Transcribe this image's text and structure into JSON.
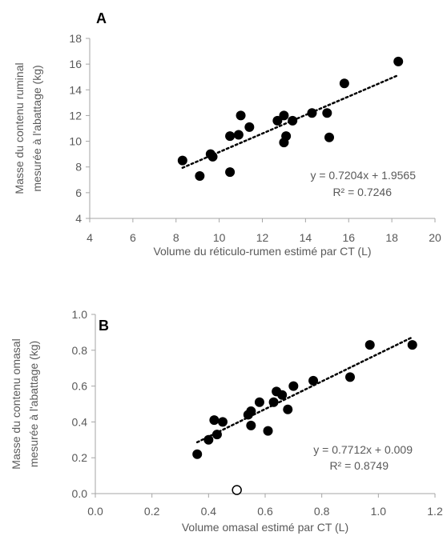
{
  "chart_data": [
    {
      "type": "scatter",
      "panel_label": "A",
      "ylabel_lines": [
        "Masse du contenu ruminal",
        "mesurée à l'abattage (kg)"
      ],
      "xlabel": "Volume du réticulo-rumen estimé par CT (L)",
      "xlim": [
        4,
        20
      ],
      "ylim": [
        4,
        18
      ],
      "xticks": [
        4,
        6,
        8,
        10,
        12,
        14,
        16,
        18,
        20
      ],
      "yticks": [
        4,
        6,
        8,
        10,
        12,
        14,
        16,
        18
      ],
      "tick_decimals": 0,
      "grid": false,
      "trendline": {
        "slope": 0.7204,
        "intercept": 1.9565,
        "x_range": [
          8.3,
          18.3
        ],
        "style": "dotted"
      },
      "annotation": {
        "equation": "y = 0.7204x + 1.9565",
        "r2": "R² = 0.7246"
      },
      "points": [
        {
          "x": 8.3,
          "y": 8.5
        },
        {
          "x": 9.1,
          "y": 7.3
        },
        {
          "x": 9.6,
          "y": 9.0
        },
        {
          "x": 9.7,
          "y": 8.8
        },
        {
          "x": 10.5,
          "y": 7.6
        },
        {
          "x": 10.5,
          "y": 10.4
        },
        {
          "x": 10.9,
          "y": 10.5
        },
        {
          "x": 11.0,
          "y": 12.0
        },
        {
          "x": 11.4,
          "y": 11.1
        },
        {
          "x": 12.7,
          "y": 11.6
        },
        {
          "x": 13.0,
          "y": 12.0
        },
        {
          "x": 13.0,
          "y": 9.9
        },
        {
          "x": 13.1,
          "y": 10.4
        },
        {
          "x": 13.4,
          "y": 11.6
        },
        {
          "x": 14.3,
          "y": 12.2
        },
        {
          "x": 15.0,
          "y": 12.2
        },
        {
          "x": 15.1,
          "y": 10.3
        },
        {
          "x": 15.8,
          "y": 14.5
        },
        {
          "x": 18.3,
          "y": 16.2
        }
      ],
      "outliers": []
    },
    {
      "type": "scatter",
      "panel_label": "B",
      "ylabel_lines": [
        "Masse du contenu omasal",
        "mesurée à l'abattage (kg)"
      ],
      "xlabel": "Volume omasal estimé par CT (L)",
      "xlim": [
        0.0,
        1.2
      ],
      "ylim": [
        0.0,
        1.0
      ],
      "xticks": [
        0.0,
        0.2,
        0.4,
        0.6,
        0.8,
        1.0,
        1.2
      ],
      "yticks": [
        0.0,
        0.2,
        0.4,
        0.6,
        0.8,
        1.0
      ],
      "tick_decimals": 1,
      "grid": false,
      "trendline": {
        "slope": 0.7712,
        "intercept": 0.009,
        "x_range": [
          0.36,
          1.12
        ],
        "style": "dotted"
      },
      "annotation": {
        "equation": "y = 0.7712x + 0.009",
        "r2": "R² = 0.8749"
      },
      "points": [
        {
          "x": 0.36,
          "y": 0.22
        },
        {
          "x": 0.4,
          "y": 0.3
        },
        {
          "x": 0.42,
          "y": 0.41
        },
        {
          "x": 0.43,
          "y": 0.33
        },
        {
          "x": 0.45,
          "y": 0.4
        },
        {
          "x": 0.54,
          "y": 0.44
        },
        {
          "x": 0.55,
          "y": 0.46
        },
        {
          "x": 0.55,
          "y": 0.38
        },
        {
          "x": 0.58,
          "y": 0.51
        },
        {
          "x": 0.61,
          "y": 0.35
        },
        {
          "x": 0.63,
          "y": 0.51
        },
        {
          "x": 0.64,
          "y": 0.57
        },
        {
          "x": 0.66,
          "y": 0.55
        },
        {
          "x": 0.68,
          "y": 0.47
        },
        {
          "x": 0.7,
          "y": 0.6
        },
        {
          "x": 0.77,
          "y": 0.63
        },
        {
          "x": 0.9,
          "y": 0.65
        },
        {
          "x": 0.97,
          "y": 0.83
        },
        {
          "x": 1.12,
          "y": 0.83
        }
      ],
      "outliers": [
        {
          "x": 0.5,
          "y": 0.02
        }
      ]
    }
  ]
}
